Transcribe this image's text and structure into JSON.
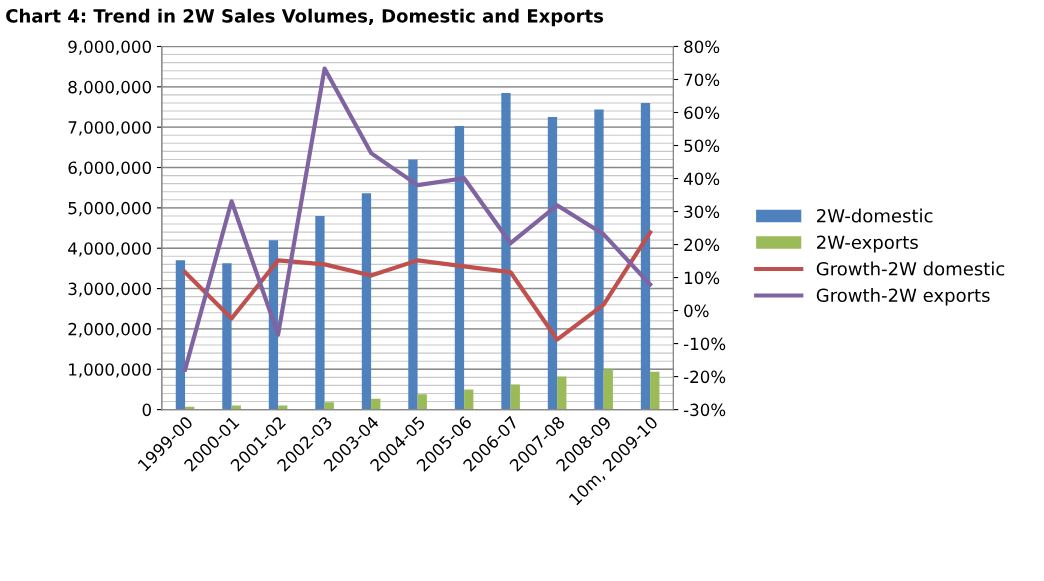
{
  "chart_data": {
    "type": "bar",
    "title": "Chart 4: Trend in 2W Sales Volumes, Domestic and Exports",
    "categories": [
      "1999-00",
      "2000-01",
      "2001-02",
      "2002-03",
      "2003-04",
      "2004-05",
      "2005-06",
      "2006-07",
      "2007-08",
      "2008-09",
      "10m, 2009-10"
    ],
    "series": [
      {
        "name": "2W-domestic",
        "color": "#4f81bd",
        "values": [
          3700000,
          3630000,
          4200000,
          4800000,
          5360000,
          6200000,
          7030000,
          7850000,
          7250000,
          7440000,
          7600000
        ]
      },
      {
        "name": "2W-exports",
        "color": "#9bbb59",
        "values": [
          70000,
          100000,
          100000,
          180000,
          270000,
          380000,
          500000,
          620000,
          820000,
          1000000,
          940000
        ]
      },
      {
        "name": "Growth-2W domestic",
        "type": "line",
        "axis": "y2",
        "color": "#c0504d",
        "values": [
          11.6,
          -2.4,
          15.2,
          14.0,
          10.6,
          15.2,
          13.4,
          11.6,
          -8.8,
          1.8,
          23.7
        ]
      },
      {
        "name": "Growth-2W exports",
        "type": "line",
        "axis": "y2",
        "color": "#8064a2",
        "values": [
          -17.9,
          33.1,
          -7.3,
          73.3,
          47.7,
          38.0,
          40.1,
          20.4,
          31.9,
          23.1,
          7.9
        ]
      }
    ],
    "ylim": [
      0,
      9000000
    ],
    "yticks": [
      {
        "value": 0,
        "label": "0"
      },
      {
        "value": 1000000,
        "label": "1,000,000"
      },
      {
        "value": 2000000,
        "label": "2,000,000"
      },
      {
        "value": 3000000,
        "label": "3,000,000"
      },
      {
        "value": 4000000,
        "label": "4,000,000"
      },
      {
        "value": 5000000,
        "label": "5,000,000"
      },
      {
        "value": 6000000,
        "label": "6,000,000"
      },
      {
        "value": 7000000,
        "label": "7,000,000"
      },
      {
        "value": 8000000,
        "label": "8,000,000"
      },
      {
        "value": 9000000,
        "label": "9,000,000"
      }
    ],
    "y2lim": [
      -30,
      80
    ],
    "y2ticks": [
      {
        "value": -30,
        "label": "-30%"
      },
      {
        "value": -20,
        "label": "-20%"
      },
      {
        "value": -10,
        "label": "-10%"
      },
      {
        "value": 0,
        "label": "0%"
      },
      {
        "value": 10,
        "label": "10%"
      },
      {
        "value": 20,
        "label": "20%"
      },
      {
        "value": 30,
        "label": "30%"
      },
      {
        "value": 40,
        "label": "40%"
      },
      {
        "value": 50,
        "label": "50%"
      },
      {
        "value": 60,
        "label": "60%"
      },
      {
        "value": 70,
        "label": "70%"
      },
      {
        "value": 80,
        "label": "80%"
      }
    ],
    "grid": "y",
    "legend": "right",
    "marker": "none"
  }
}
